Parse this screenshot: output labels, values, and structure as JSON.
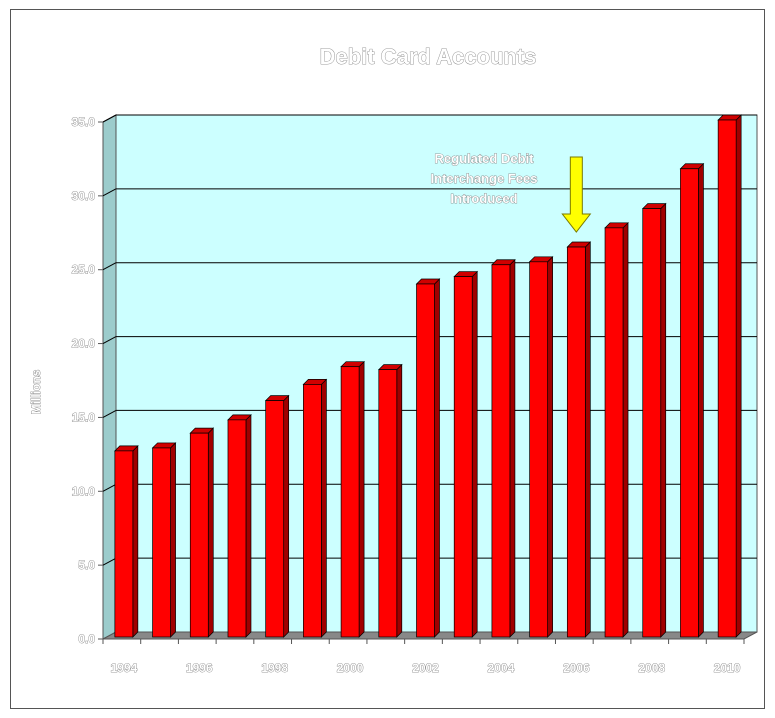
{
  "chart_data": {
    "type": "bar",
    "title": "Debit Card Accounts",
    "xlabel": "",
    "ylabel": "Millions",
    "categories": [
      "1994",
      "1995",
      "1996",
      "1997",
      "1998",
      "1999",
      "2000",
      "2001",
      "2002",
      "2003",
      "2004",
      "2005",
      "2006",
      "2007",
      "2008",
      "2009",
      "2010"
    ],
    "x_tick_labels": [
      "1994",
      "1996",
      "1998",
      "2000",
      "2002",
      "2004",
      "2006",
      "2008",
      "2010"
    ],
    "values": [
      12.6,
      12.8,
      13.8,
      14.7,
      16.0,
      17.1,
      18.3,
      18.1,
      23.9,
      24.4,
      25.2,
      25.4,
      26.4,
      27.7,
      29.0,
      31.7,
      35.0
    ],
    "ylim": [
      0,
      35
    ],
    "yticks": [
      "0.0",
      "5.0",
      "10.0",
      "15.0",
      "20.0",
      "25.0",
      "30.0",
      "35.0"
    ],
    "grid": true,
    "legend": "none",
    "annotation": {
      "lines": [
        "Regulated Debit",
        "Interchange Fees",
        "Introduced"
      ],
      "arrow_at": "2006",
      "arrow_color": "#ffff00"
    },
    "colors": {
      "bar": "#ff0000",
      "bar_side": "#a00000",
      "bar_top": "#d00000",
      "plot_background": "#ccffff",
      "wall_side": "#9ccccc",
      "floor": "#888888",
      "gridline": "#000000"
    }
  }
}
